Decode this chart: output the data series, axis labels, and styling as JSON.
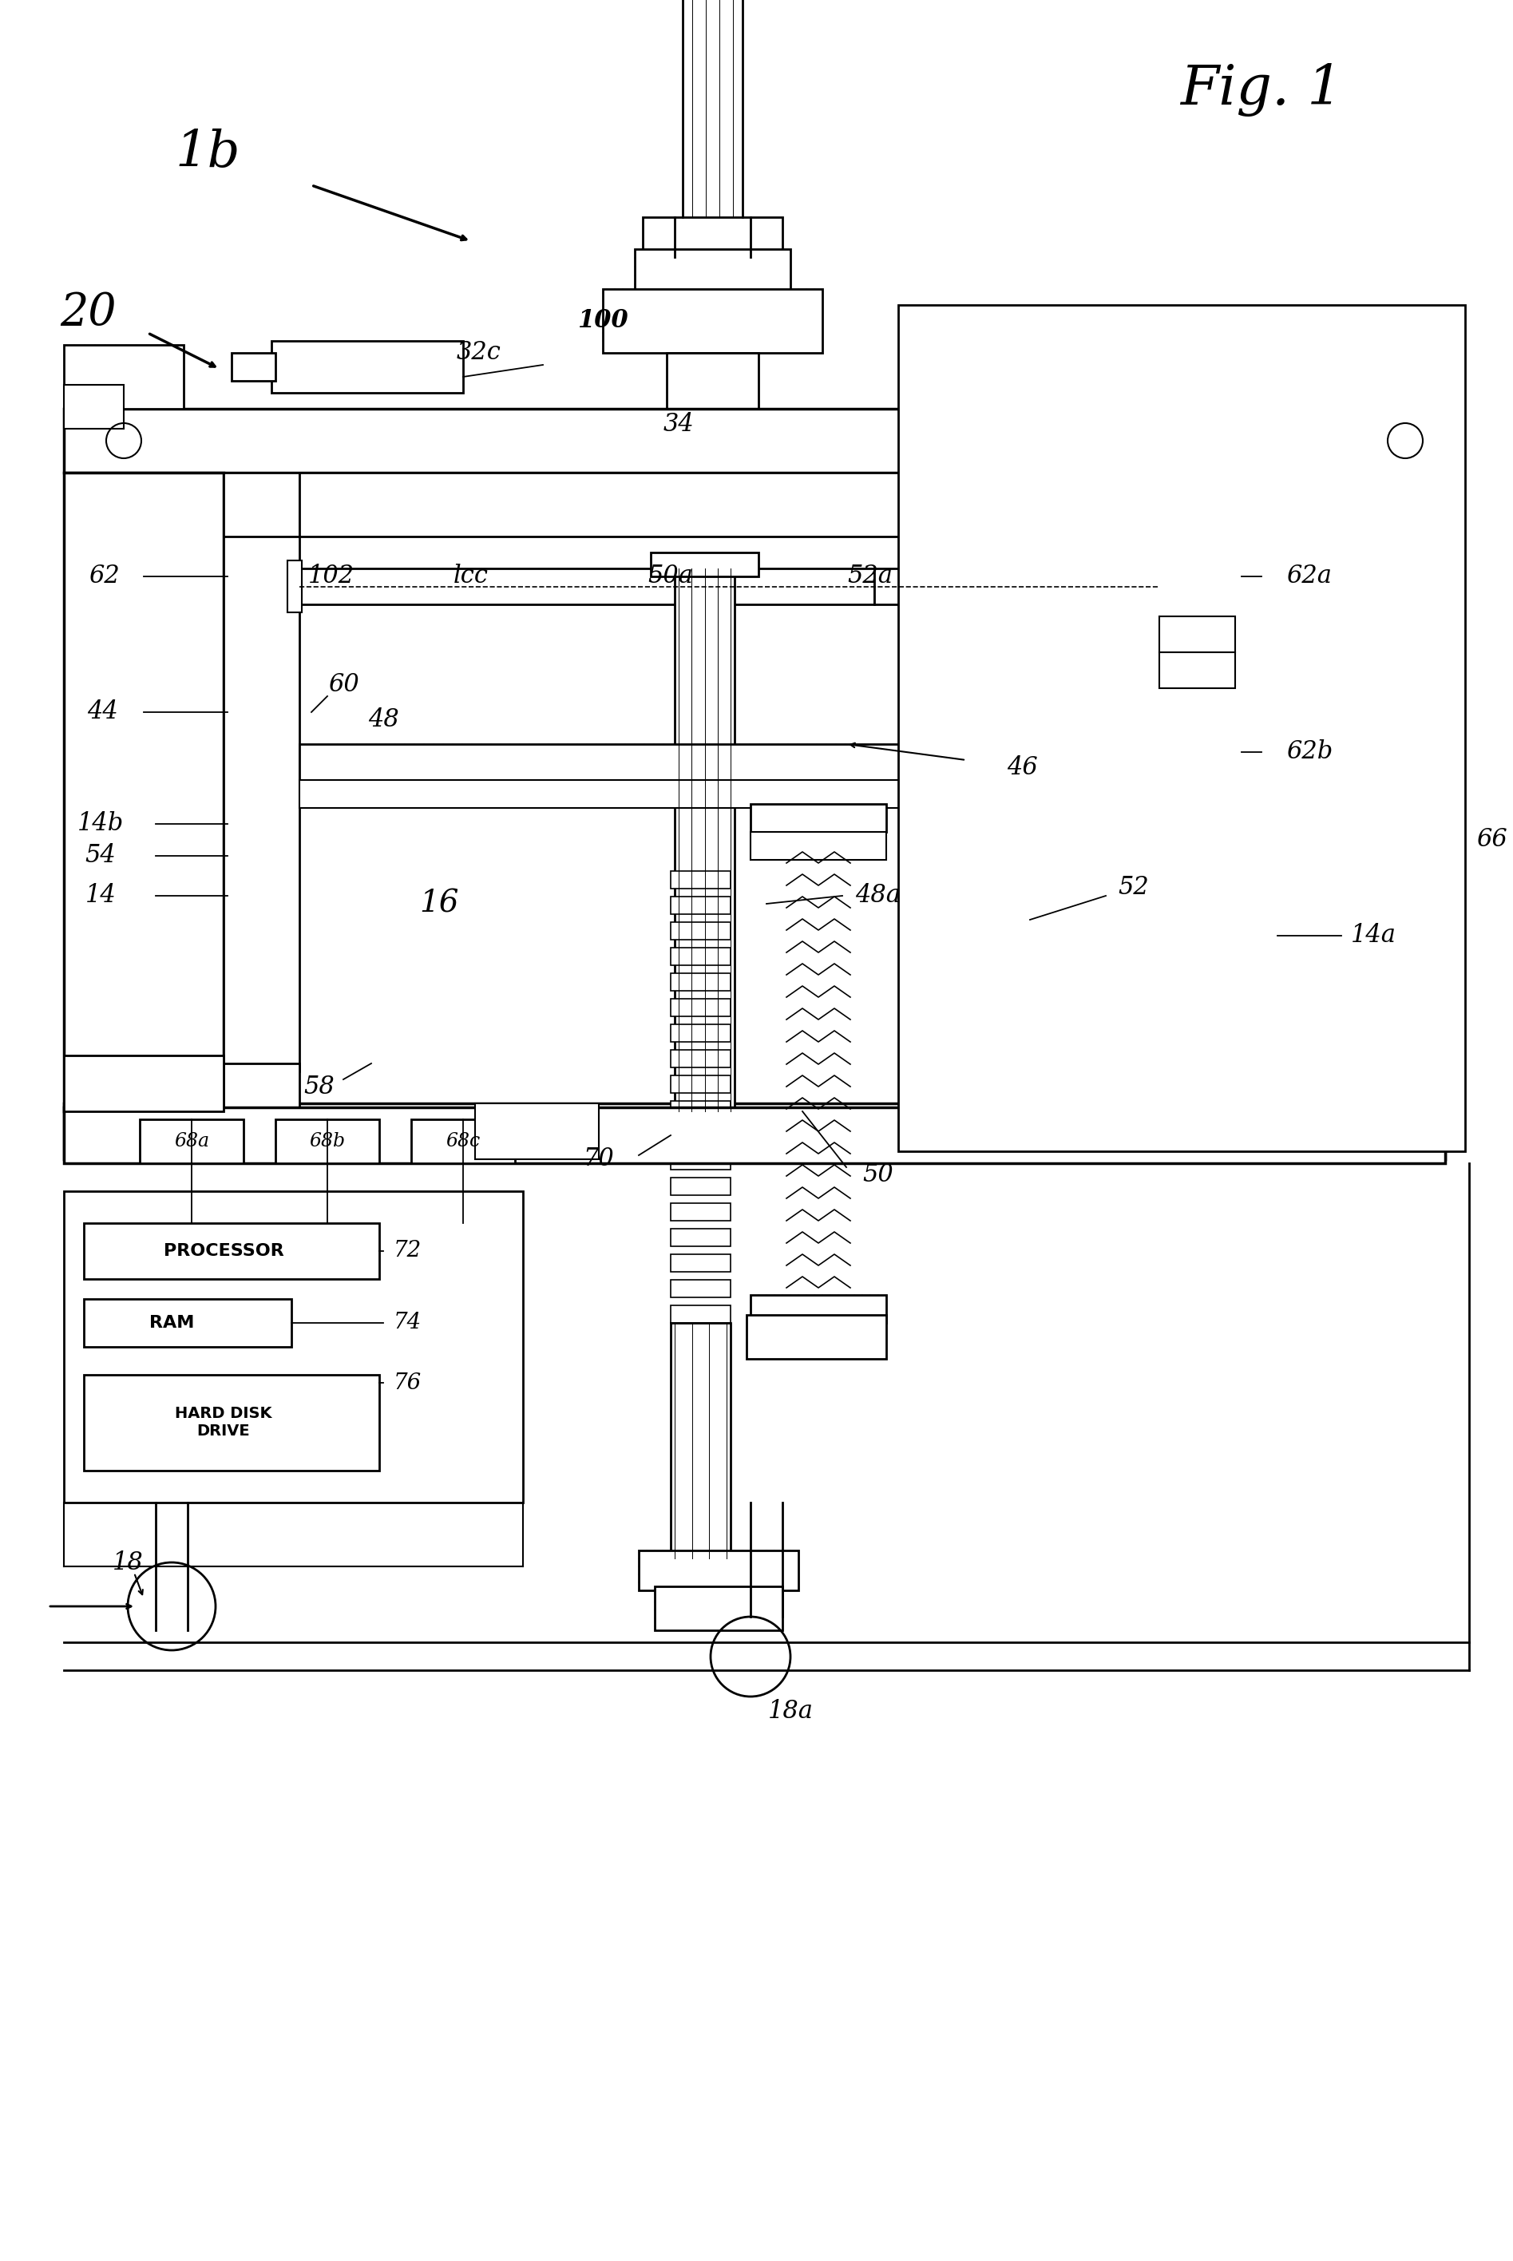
{
  "bg": "#ffffff",
  "lc": "#000000",
  "labels": {
    "fig": "Fig. 1",
    "1b": "1b",
    "20": "20",
    "32c": "32c",
    "100": "100",
    "34": "34",
    "62": "62",
    "102": "102",
    "lcc": "lcc",
    "50a": "50a",
    "52a": "52a",
    "62a": "62a",
    "44": "44",
    "60": "60",
    "48": "48",
    "62b": "62b",
    "46": "46",
    "14b": "14b",
    "54": "54",
    "14": "14",
    "16": "16",
    "48a": "48a",
    "58": "58",
    "52": "52",
    "14a": "14a",
    "66": "66",
    "68a": "68a",
    "68b": "68b",
    "68c": "68c",
    "72": "72",
    "74": "74",
    "76": "76",
    "70": "70",
    "50": "50",
    "18": "18",
    "18a": "18a",
    "PROCESSOR": "PROCESSOR",
    "RAM": "RAM",
    "HARDDISK": "HARD DISK\nDRIVE"
  }
}
